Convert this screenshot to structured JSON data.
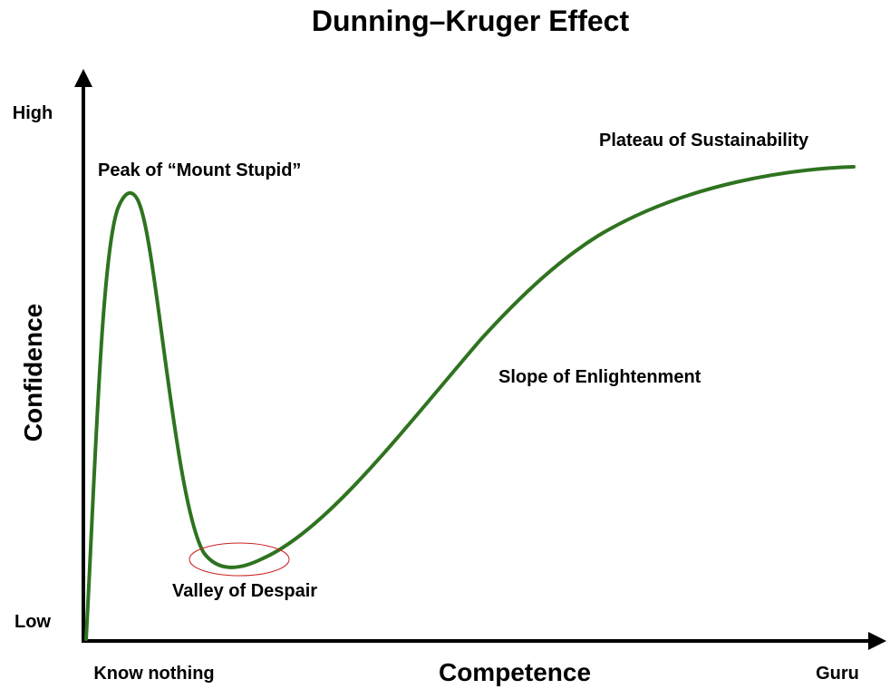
{
  "title": "Dunning–Kruger Effect",
  "axes": {
    "x_label": "Competence",
    "y_label": "Confidence",
    "x_start_label": "Know nothing",
    "x_end_label": "Guru",
    "y_high_label": "High",
    "y_low_label": "Low"
  },
  "annotations": {
    "peak": "Peak of “Mount Stupid”",
    "valley": "Valley of Despair",
    "slope": "Slope of Enlightenment",
    "plateau": "Plateau of Sustainability"
  },
  "colors": {
    "curve": "#2f7320",
    "axes": "#000000",
    "valley_highlight": "#cc2222"
  }
}
